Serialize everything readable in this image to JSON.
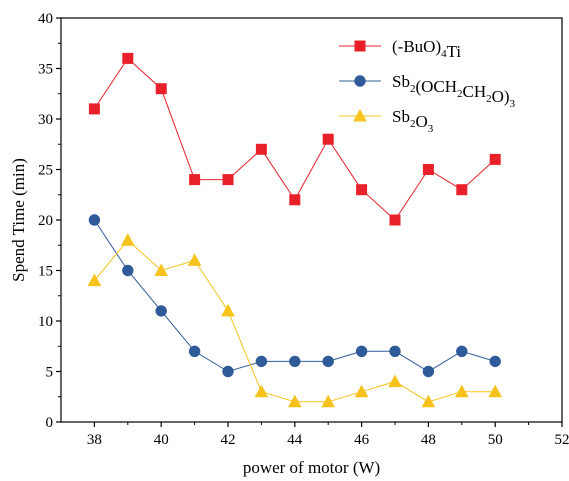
{
  "chart_data": {
    "type": "line",
    "title": "",
    "xlabel": "power of motor (W)",
    "ylabel": "Spend Time (min)",
    "xlim": [
      37,
      52
    ],
    "ylim": [
      0,
      40
    ],
    "x_ticks": [
      38,
      40,
      42,
      44,
      46,
      48,
      50,
      52
    ],
    "y_ticks": [
      0,
      5,
      10,
      15,
      20,
      25,
      30,
      35,
      40
    ],
    "x": [
      38,
      39,
      40,
      41,
      42,
      43,
      44,
      45,
      46,
      47,
      48,
      49,
      50
    ],
    "grid": false,
    "legend_position": "top-right",
    "series": [
      {
        "name": "(n-BuO)4Ti",
        "legend_parts": [
          [
            "(",
            "n"
          ],
          [
            "",
            "i"
          ],
          [
            "-BuO)",
            "n"
          ],
          [
            "4",
            "sub"
          ],
          [
            "Ti",
            "n"
          ]
        ],
        "color": "#e8202a",
        "marker": "square",
        "values": [
          31,
          36,
          33,
          24,
          24,
          27,
          22,
          28,
          23,
          20,
          25,
          23,
          26
        ]
      },
      {
        "name": "Sb2(OCH2CH2O)3",
        "legend_parts": [
          [
            "Sb",
            "n"
          ],
          [
            "2",
            "sub"
          ],
          [
            "(OCH",
            "n"
          ],
          [
            "2",
            "sub"
          ],
          [
            "CH",
            "n"
          ],
          [
            "2",
            "sub"
          ],
          [
            "O)",
            "n"
          ],
          [
            "3",
            "sub"
          ]
        ],
        "color": "#2f5b9a",
        "marker": "circle",
        "values": [
          20,
          15,
          11,
          7,
          5,
          6,
          6,
          6,
          7,
          7,
          5,
          7,
          6
        ]
      },
      {
        "name": "Sb2O3",
        "legend_parts": [
          [
            "Sb",
            "n"
          ],
          [
            "2",
            "sub"
          ],
          [
            "O",
            "n"
          ],
          [
            "3",
            "sub"
          ]
        ],
        "color": "#f7c21b",
        "marker": "triangle",
        "values": [
          14,
          18,
          15,
          16,
          11,
          3,
          2,
          2,
          3,
          4,
          2,
          3,
          3
        ]
      }
    ]
  }
}
